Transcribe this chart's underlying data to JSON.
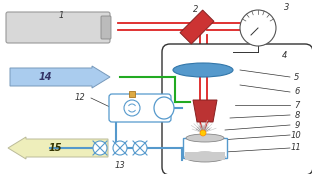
{
  "bg_color": "#ffffff",
  "red_line_color": "#dd2222",
  "green_line_color": "#22aa22",
  "blue_line_color": "#5599cc",
  "dark_line_color": "#333333",
  "mirror_color": "#cc3333",
  "lens_color": "#5599cc",
  "nozzle_color": "#bb3333",
  "spark_color": "#ffaa00",
  "arrow14_color": "#aaccee",
  "arrow15_color": "#eeeebb",
  "laser_color": "#d8d8d8",
  "chamber_color": "#ffffff",
  "tank_color": "#aaccee"
}
